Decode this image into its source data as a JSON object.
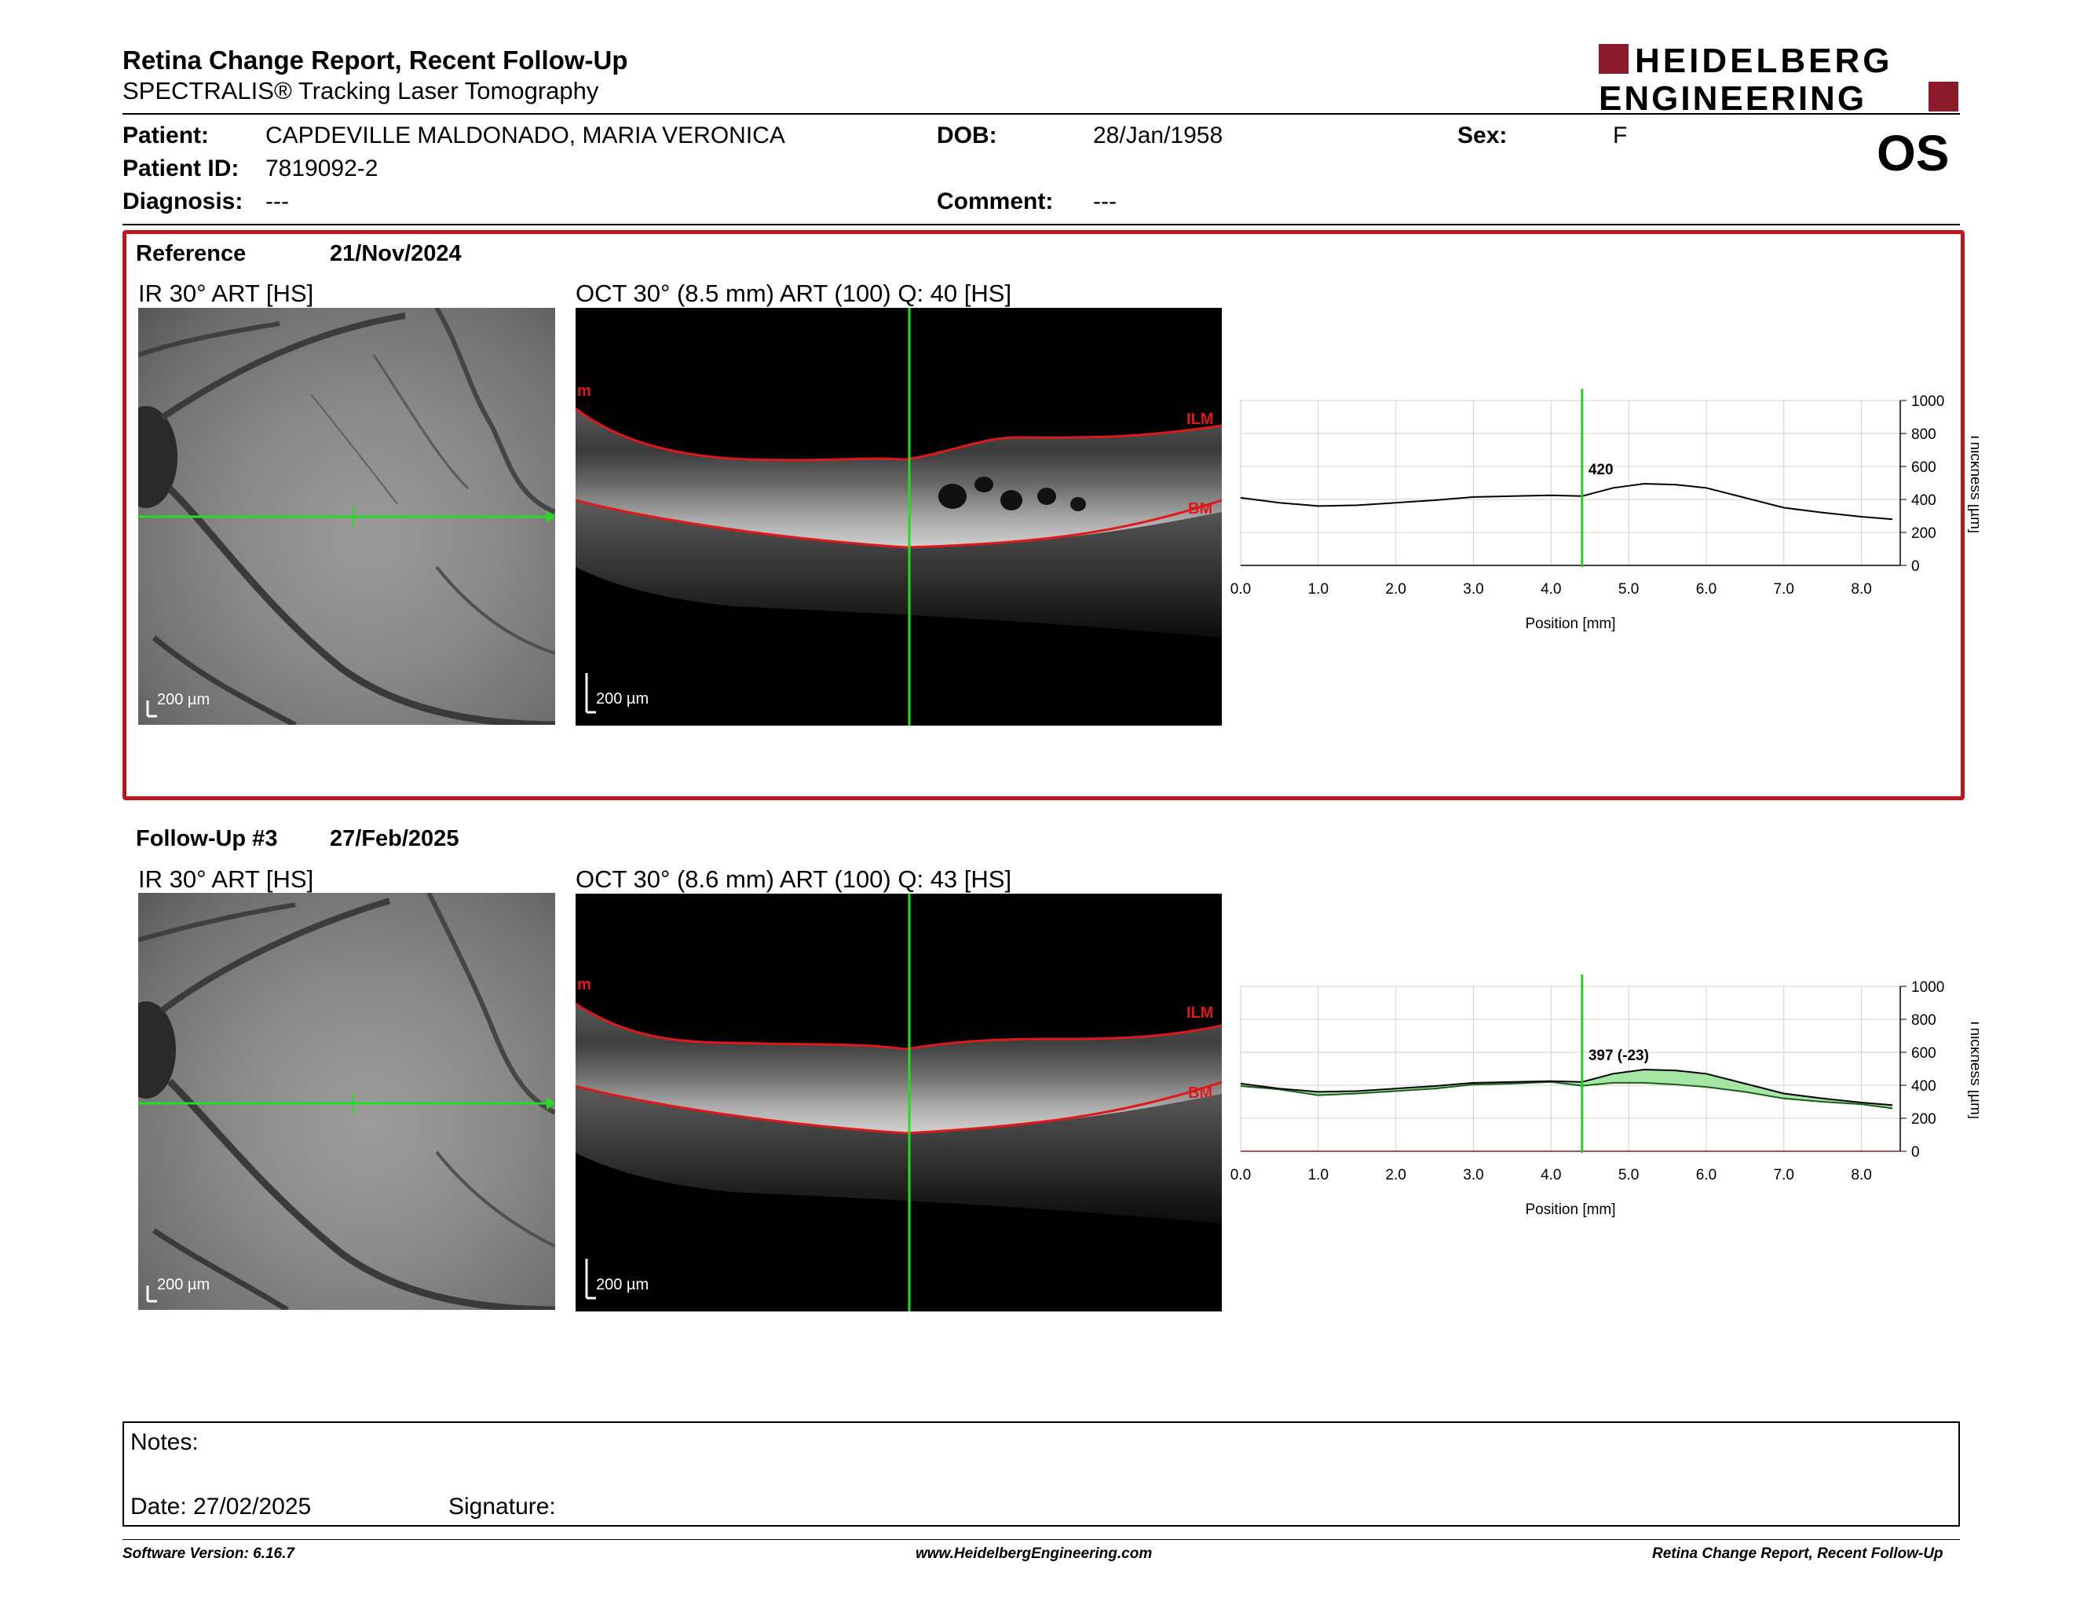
{
  "header": {
    "title": "Retina Change Report, Recent Follow-Up",
    "subtitle": "SPECTRALIS® Tracking Laser Tomography",
    "logo_line1": "HEIDELBERG",
    "logo_line2": "ENGINEERING",
    "eye": "OS"
  },
  "patient": {
    "name_label": "Patient:",
    "name": "CAPDEVILLE MALDONADO, MARIA VERONICA",
    "id_label": "Patient ID:",
    "id": "7819092-2",
    "diagnosis_label": "Diagnosis:",
    "diagnosis": "---",
    "dob_label": "DOB:",
    "dob": "28/Jan/1958",
    "comment_label": "Comment:",
    "comment": "---",
    "sex_label": "Sex:",
    "sex": "F"
  },
  "reference": {
    "label": "Reference",
    "date": "21/Nov/2024",
    "ir_caption": "IR 30° ART [HS]",
    "oct_caption": "OCT 30° (8.5 mm) ART (100) Q: 40 [HS]",
    "scale_ir": "200 µm",
    "scale_oct": "200 µm",
    "ilm_label": "ILM",
    "bm_label": "BM",
    "m_label": "m"
  },
  "followup": {
    "label": "Follow-Up #3",
    "date": "27/Feb/2025",
    "ir_caption": "IR 30° ART [HS]",
    "oct_caption": "OCT 30° (8.6 mm) ART (100) Q: 43 [HS]",
    "scale_ir": "200 µm",
    "scale_oct": "200 µm",
    "ilm_label": "ILM",
    "bm_label": "BM",
    "m_label": "m"
  },
  "chart_data": [
    {
      "type": "line",
      "xlabel": "Position [mm]",
      "ylabel": "Thickness [µm]",
      "xlim": [
        0.0,
        8.5
      ],
      "ylim": [
        0,
        1000
      ],
      "x_ticks": [
        "0.0",
        "1.0",
        "2.0",
        "3.0",
        "4.0",
        "5.0",
        "6.0",
        "7.0",
        "8.0"
      ],
      "y_ticks": [
        "0",
        "200",
        "400",
        "600",
        "800",
        "1000"
      ],
      "cursor_x": 4.4,
      "cursor_label": "420",
      "series": [
        {
          "x": [
            0.0,
            0.5,
            1.0,
            1.5,
            2.0,
            2.5,
            3.0,
            3.5,
            4.0,
            4.4,
            4.8,
            5.2,
            5.6,
            6.0,
            6.5,
            7.0,
            7.5,
            8.0,
            8.4
          ],
          "y": [
            410,
            380,
            360,
            365,
            380,
            395,
            415,
            420,
            425,
            420,
            470,
            495,
            490,
            470,
            410,
            350,
            320,
            295,
            280
          ]
        }
      ]
    },
    {
      "type": "area",
      "xlabel": "Position [mm]",
      "ylabel": "Thickness [µm]",
      "xlim": [
        0.0,
        8.5
      ],
      "ylim": [
        0,
        1000
      ],
      "x_ticks": [
        "0.0",
        "1.0",
        "2.0",
        "3.0",
        "4.0",
        "5.0",
        "6.0",
        "7.0",
        "8.0"
      ],
      "y_ticks": [
        "0",
        "200",
        "400",
        "600",
        "800",
        "1000"
      ],
      "cursor_x": 4.4,
      "cursor_label": "397 (-23)",
      "series": [
        {
          "x": [
            0.0,
            0.5,
            1.0,
            1.5,
            2.0,
            2.5,
            3.0,
            3.5,
            4.0,
            4.4,
            4.8,
            5.2,
            5.6,
            6.0,
            6.5,
            7.0,
            7.5,
            8.0,
            8.4
          ],
          "y": [
            410,
            380,
            360,
            365,
            380,
            395,
            415,
            420,
            425,
            420,
            470,
            495,
            490,
            470,
            410,
            350,
            320,
            295,
            280
          ]
        },
        {
          "x": [
            0.0,
            0.5,
            1.0,
            1.5,
            2.0,
            2.5,
            3.0,
            3.5,
            4.0,
            4.4,
            4.8,
            5.2,
            5.6,
            6.0,
            6.5,
            7.0,
            7.5,
            8.0,
            8.4
          ],
          "y": [
            395,
            375,
            340,
            350,
            365,
            380,
            405,
            410,
            420,
            397,
            415,
            415,
            405,
            390,
            360,
            320,
            300,
            285,
            260
          ]
        }
      ],
      "colors": {
        "reference": "#000000",
        "followup": "#1a5e1a",
        "fill": "#9be39b",
        "cursor": "#22cc22",
        "baseline": "#8b1a1a"
      }
    }
  ],
  "notes": {
    "notes_label": "Notes:",
    "date_label": "Date: 27/02/2025",
    "signature_label": "Signature:"
  },
  "footer": {
    "left": "Software Version: 6.16.7",
    "center": "www.HeidelbergEngineering.com",
    "right": "Retina Change Report, Recent Follow-Up"
  }
}
